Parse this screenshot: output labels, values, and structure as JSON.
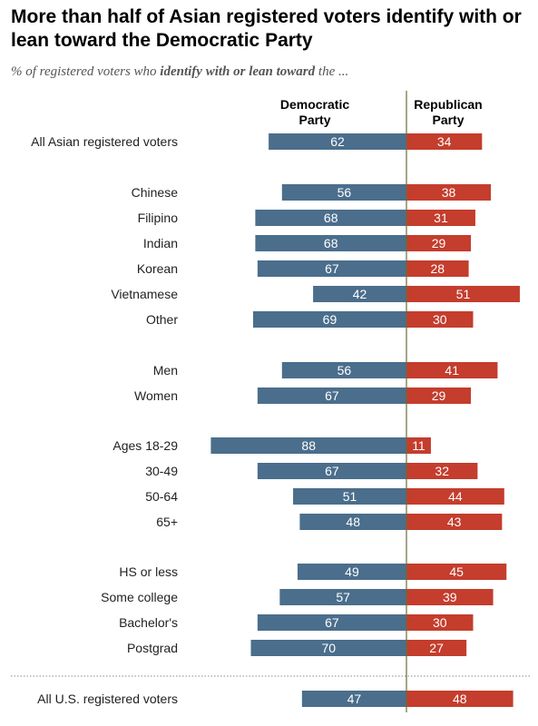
{
  "title": "More than half of Asian registered voters identify with or lean toward the Democratic Party",
  "subtitle": {
    "prefix": "% of registered voters who ",
    "emphasis": "identify with or lean toward",
    "suffix": " the ..."
  },
  "colors": {
    "democratic": "#4a6e8c",
    "republican": "#c43d2d",
    "axis": "#6d6b3a",
    "label": "#222222"
  },
  "chart_data": {
    "type": "bar",
    "orientation": "diverging-horizontal",
    "columns": {
      "democratic": [
        "Democratic",
        "Party"
      ],
      "republican": [
        "Republican",
        "Party"
      ]
    },
    "rows": [
      {
        "label": "All Asian registered voters",
        "dem": 62,
        "rep": 34
      },
      {
        "label": "Chinese",
        "dem": 56,
        "rep": 38
      },
      {
        "label": "Filipino",
        "dem": 68,
        "rep": 31
      },
      {
        "label": "Indian",
        "dem": 68,
        "rep": 29
      },
      {
        "label": "Korean",
        "dem": 67,
        "rep": 28
      },
      {
        "label": "Vietnamese",
        "dem": 42,
        "rep": 51
      },
      {
        "label": "Other",
        "dem": 69,
        "rep": 30
      },
      {
        "label": "Men",
        "dem": 56,
        "rep": 41
      },
      {
        "label": "Women",
        "dem": 67,
        "rep": 29
      },
      {
        "label": "Ages 18-29",
        "dem": 88,
        "rep": 11
      },
      {
        "label": "30-49",
        "dem": 67,
        "rep": 32
      },
      {
        "label": "50-64",
        "dem": 51,
        "rep": 44
      },
      {
        "label": "65+",
        "dem": 48,
        "rep": 43
      },
      {
        "label": "HS or less",
        "dem": 49,
        "rep": 45
      },
      {
        "label": "Some college",
        "dem": 57,
        "rep": 39
      },
      {
        "label": "Bachelor's",
        "dem": 67,
        "rep": 30
      },
      {
        "label": "Postgrad",
        "dem": 70,
        "rep": 27
      },
      {
        "label": "All U.S. registered voters",
        "dem": 47,
        "rep": 48
      }
    ]
  }
}
